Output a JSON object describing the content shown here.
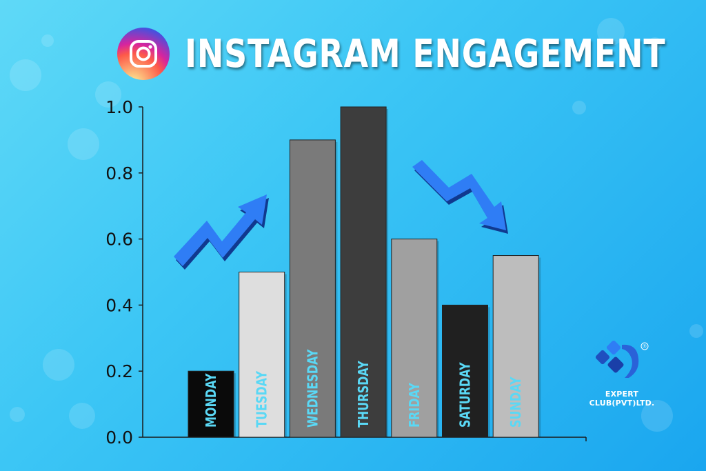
{
  "header": {
    "title": "INSTAGRAM ENGAGEMENT",
    "logo_icon": "instagram-icon"
  },
  "brand": {
    "name": "EXPERT CLUB(PVT)LTD.",
    "logo_icon": "expert-club-logo",
    "registered_mark": "®"
  },
  "decorations": {
    "up_arrow_icon": "trend-up-arrow-icon",
    "down_arrow_icon": "trend-down-arrow-icon",
    "arrow_color": "#2f7df5"
  },
  "chart_data": {
    "type": "bar",
    "categories": [
      "MONDAY",
      "TUESDAY",
      "WEDNESDAY",
      "THURSDAY",
      "FRIDAY",
      "SATURDAY",
      "SUNDAY"
    ],
    "values": [
      0.2,
      0.5,
      0.9,
      1.0,
      0.6,
      0.4,
      0.55
    ],
    "bar_colors": [
      "#0a0a0a",
      "#dedede",
      "#7a7a7a",
      "#3d3d3d",
      "#a0a0a0",
      "#202020",
      "#bdbdbd"
    ],
    "label_color": "#5ad8f5",
    "title": "INSTAGRAM ENGAGEMENT",
    "xlabel": "",
    "ylabel": "",
    "ylim": [
      0,
      1.0
    ],
    "yticks": [
      "0.0",
      "0.2",
      "0.4",
      "0.6",
      "0.8",
      "1.0"
    ],
    "grid": false,
    "category_labels_inside_bars": true
  }
}
